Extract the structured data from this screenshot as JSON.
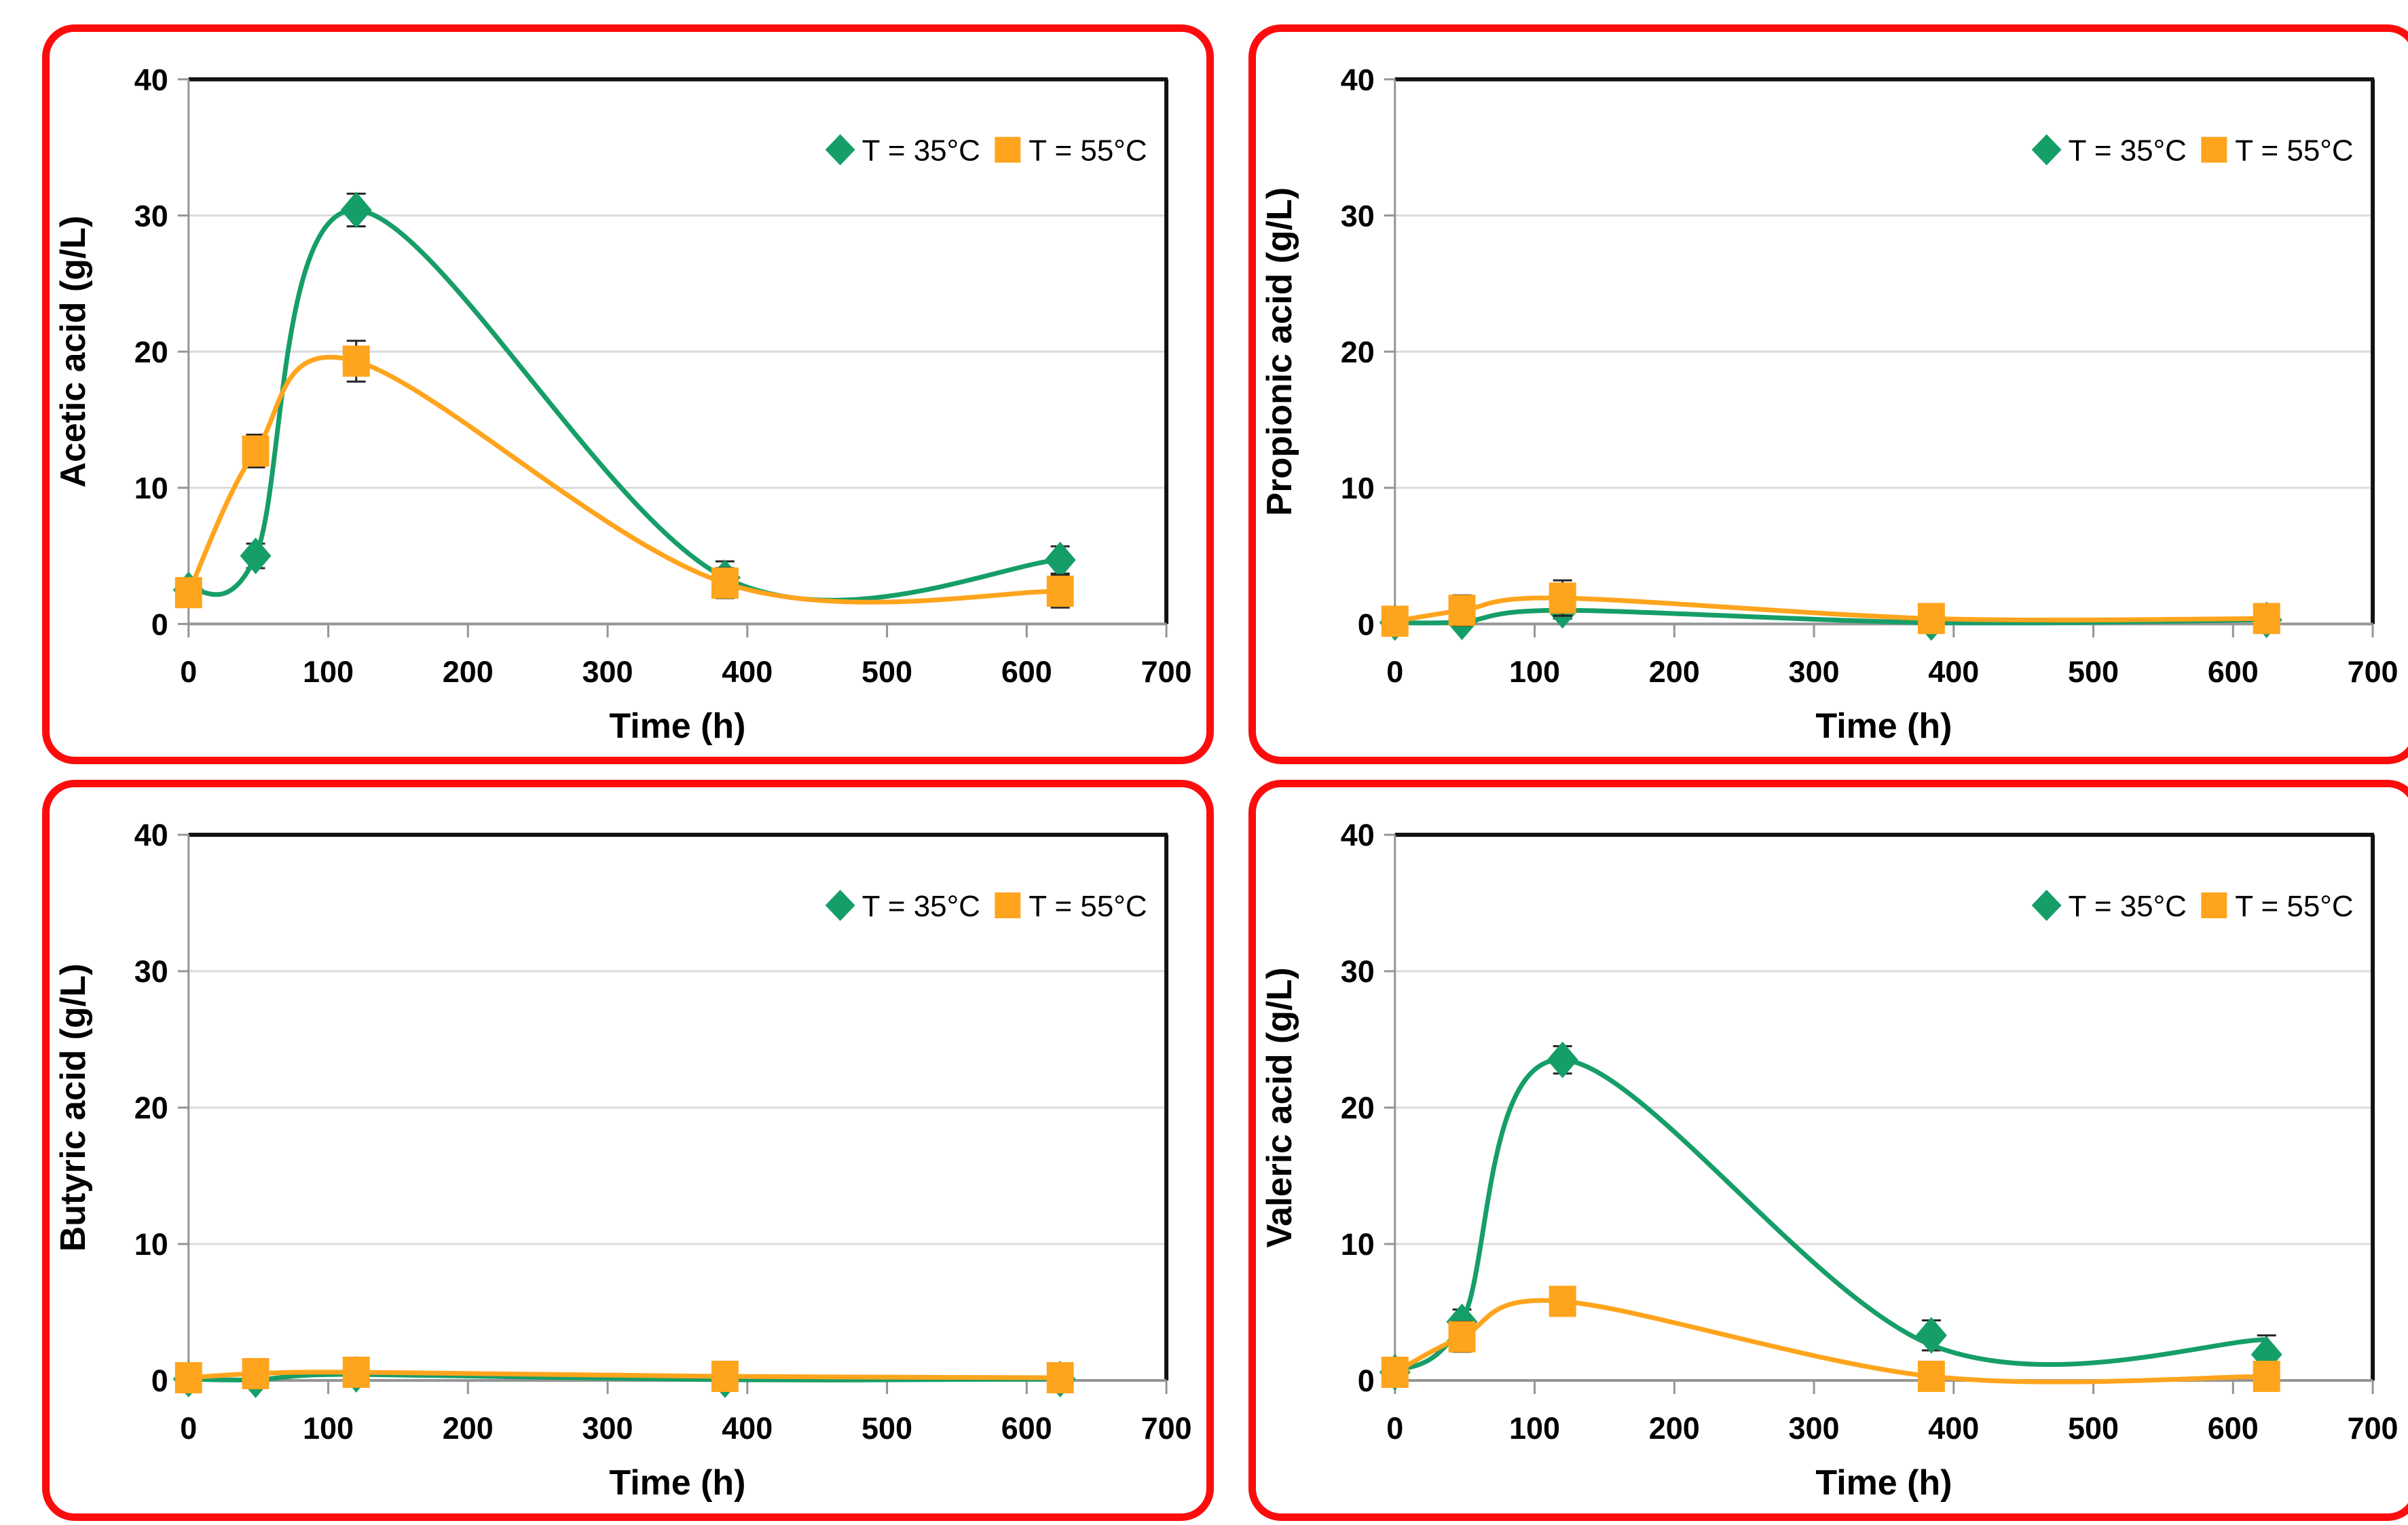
{
  "figure": {
    "panel_border_color": "#fb0d0d",
    "background": "#ffffff"
  },
  "styles": {
    "grid_color": "#dbdbdb",
    "axis_color": "#959595",
    "frame_color": "#121212",
    "error_bar_color": "#262626",
    "tick_label_color": "#000000",
    "series_green": "#169e68",
    "series_orange": "#ffa41d"
  },
  "legend": {
    "items": [
      {
        "label": "T = 35°C",
        "marker": "diamond",
        "color": "#169e68"
      },
      {
        "label": "T = 55°C",
        "marker": "square",
        "color": "#ffa41d"
      }
    ]
  },
  "chart_defaults": {
    "xlabel": "Time (h)",
    "xlim": [
      0,
      700
    ],
    "ylim": [
      0,
      40
    ],
    "x_ticks": [
      0,
      100,
      200,
      300,
      400,
      500,
      600,
      700
    ],
    "y_ticks": [
      0,
      10,
      20,
      30,
      40
    ],
    "grid": "horizontal",
    "legend_position": "top-right"
  },
  "chart_data": [
    {
      "type": "line",
      "ylabel": "Acetic acid (g/L)",
      "xlabel": "Time (h)",
      "xlim": [
        0,
        700
      ],
      "ylim": [
        0,
        40
      ],
      "x": [
        0,
        48,
        120,
        384,
        624
      ],
      "series": [
        {
          "name": "T = 35°C",
          "marker": "diamond",
          "color": "#169e68",
          "values": [
            2.5,
            5.0,
            30.4,
            3.4,
            4.7
          ],
          "errors": [
            0.8,
            0.9,
            1.2,
            1.2,
            1.0
          ]
        },
        {
          "name": "T = 55°C",
          "marker": "square",
          "color": "#ffa41d",
          "values": [
            2.3,
            12.7,
            19.3,
            3.0,
            2.4
          ],
          "errors": [
            0.9,
            1.2,
            1.5,
            1.1,
            1.2
          ]
        }
      ]
    },
    {
      "type": "line",
      "ylabel": "Propionic acid (g/L)",
      "xlabel": "Time (h)",
      "xlim": [
        0,
        700
      ],
      "ylim": [
        0,
        40
      ],
      "x": [
        0,
        48,
        120,
        384,
        624
      ],
      "series": [
        {
          "name": "T = 35°C",
          "marker": "diamond",
          "color": "#169e68",
          "values": [
            0.1,
            0.15,
            1.0,
            0.1,
            0.3
          ],
          "errors": [
            0.3,
            0.4,
            0.6,
            0.4,
            0.3
          ]
        },
        {
          "name": "T = 55°C",
          "marker": "square",
          "color": "#ffa41d",
          "values": [
            0.2,
            1.0,
            1.9,
            0.4,
            0.4
          ],
          "errors": [
            0.5,
            1.1,
            1.3,
            0.9,
            0.5
          ]
        }
      ]
    },
    {
      "type": "line",
      "ylabel": "Butyric acid (g/L)",
      "xlabel": "Time (h)",
      "xlim": [
        0,
        700
      ],
      "ylim": [
        0,
        40
      ],
      "x": [
        0,
        48,
        120,
        384,
        624
      ],
      "series": [
        {
          "name": "T = 35°C",
          "marker": "diamond",
          "color": "#169e68",
          "values": [
            0.1,
            0.05,
            0.45,
            0.05,
            0.1
          ],
          "errors": [
            0.3,
            0.4,
            0.5,
            0.3,
            0.3
          ]
        },
        {
          "name": "T = 55°C",
          "marker": "square",
          "color": "#ffa41d",
          "values": [
            0.2,
            0.5,
            0.6,
            0.3,
            0.2
          ],
          "errors": [
            0.4,
            0.9,
            1.0,
            0.8,
            0.9
          ]
        }
      ]
    },
    {
      "type": "line",
      "ylabel": "Valeric acid (g/L)",
      "xlabel": "Time (h)",
      "xlim": [
        0,
        700
      ],
      "ylim": [
        0,
        40
      ],
      "x": [
        0,
        48,
        120,
        384,
        624
      ],
      "series": [
        {
          "name": "T = 35°C",
          "marker": "diamond",
          "color": "#169e68",
          "values": [
            0.6,
            4.3,
            23.5,
            3.3,
            1.9
          ],
          "line_values": [
            0.6,
            4.3,
            23.5,
            2.6,
            3.0
          ],
          "errors": [
            0.9,
            0.9,
            1.0,
            1.1,
            1.4
          ]
        },
        {
          "name": "T = 55°C",
          "marker": "square",
          "color": "#ffa41d",
          "values": [
            0.6,
            3.2,
            5.8,
            0.3,
            0.3
          ],
          "errors": [
            0.5,
            1.1,
            0.9,
            0.5,
            0.4
          ]
        }
      ]
    }
  ]
}
